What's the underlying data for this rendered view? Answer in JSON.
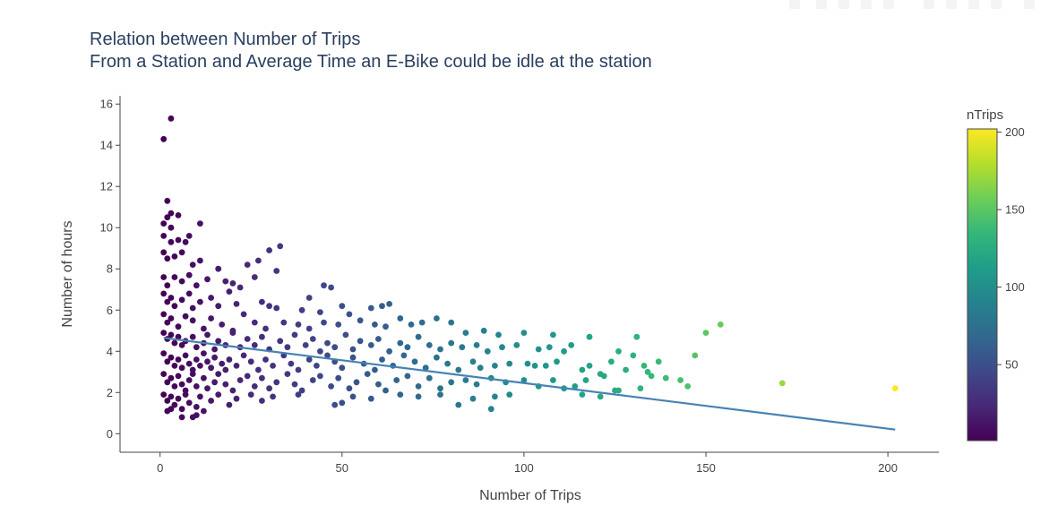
{
  "chart_data": {
    "type": "scatter",
    "title": [
      "Relation between Number of Trips",
      "From a Station and Average Time an E-Bike could be idle at the station"
    ],
    "xlabel": "Number of Trips",
    "ylabel": "Number of hours",
    "xlim": [
      -11,
      214
    ],
    "ylim": [
      -0.9,
      16.4
    ],
    "xticks": [
      0,
      50,
      100,
      150,
      200
    ],
    "yticks": [
      0,
      2,
      4,
      6,
      8,
      10,
      12,
      14,
      16
    ],
    "grid": false,
    "trendline": {
      "x": [
        1,
        202
      ],
      "y": [
        4.65,
        0.2
      ]
    },
    "colorbar": {
      "title": "nTrips",
      "range": [
        1,
        202
      ],
      "ticks": [
        50,
        100,
        150,
        200
      ],
      "colorscale": [
        "#440154",
        "#482878",
        "#3e4989",
        "#31688e",
        "#26828e",
        "#1f9e89",
        "#35b779",
        "#6ece58",
        "#b5de2b",
        "#fde725"
      ]
    },
    "points": [
      [
        3,
        15.3
      ],
      [
        1,
        14.3
      ],
      [
        2,
        11.3
      ],
      [
        3,
        10.7
      ],
      [
        2,
        10.5
      ],
      [
        1,
        10.2
      ],
      [
        3,
        10.0
      ],
      [
        5,
        10.6
      ],
      [
        11,
        10.2
      ],
      [
        1,
        9.6
      ],
      [
        3,
        9.3
      ],
      [
        5,
        9.4
      ],
      [
        7,
        9.3
      ],
      [
        8,
        9.6
      ],
      [
        1,
        8.8
      ],
      [
        2,
        8.5
      ],
      [
        4,
        8.6
      ],
      [
        6,
        8.8
      ],
      [
        9,
        8.2
      ],
      [
        11,
        8.4
      ],
      [
        16,
        8.0
      ],
      [
        24,
        8.2
      ],
      [
        32,
        7.9
      ],
      [
        27,
        8.4
      ],
      [
        30,
        8.9
      ],
      [
        33,
        9.1
      ],
      [
        1,
        7.6
      ],
      [
        2,
        7.2
      ],
      [
        4,
        7.6
      ],
      [
        6,
        7.4
      ],
      [
        8,
        7.7
      ],
      [
        10,
        7.2
      ],
      [
        13,
        7.5
      ],
      [
        18,
        7.4
      ],
      [
        20,
        7.3
      ],
      [
        22,
        7.1
      ],
      [
        26,
        7.6
      ],
      [
        1,
        6.8
      ],
      [
        2,
        6.4
      ],
      [
        3,
        6.6
      ],
      [
        4,
        6.2
      ],
      [
        6,
        6.5
      ],
      [
        8,
        6.8
      ],
      [
        9,
        6.1
      ],
      [
        11,
        6.4
      ],
      [
        14,
        6.6
      ],
      [
        16,
        6.2
      ],
      [
        19,
        6.9
      ],
      [
        21,
        6.3
      ],
      [
        28,
        6.4
      ],
      [
        30,
        6.2
      ],
      [
        32,
        6.1
      ],
      [
        39,
        6.0
      ],
      [
        44,
        5.9
      ],
      [
        45,
        7.2
      ],
      [
        47,
        7.1
      ],
      [
        50,
        6.2
      ],
      [
        41,
        6.6
      ],
      [
        58,
        6.1
      ],
      [
        61,
        6.2
      ],
      [
        63,
        6.3
      ],
      [
        1,
        5.8
      ],
      [
        2,
        5.4
      ],
      [
        3,
        5.6
      ],
      [
        5,
        5.2
      ],
      [
        7,
        5.7
      ],
      [
        9,
        5.5
      ],
      [
        12,
        5.1
      ],
      [
        14,
        5.6
      ],
      [
        17,
        5.3
      ],
      [
        20,
        5.0
      ],
      [
        23,
        5.8
      ],
      [
        26,
        5.4
      ],
      [
        29,
        5.1
      ],
      [
        34,
        5.4
      ],
      [
        38,
        5.3
      ],
      [
        41,
        5.1
      ],
      [
        45,
        5.4
      ],
      [
        49,
        5.3
      ],
      [
        52,
        5.8
      ],
      [
        55,
        5.5
      ],
      [
        59,
        5.3
      ],
      [
        62,
        5.2
      ],
      [
        66,
        5.6
      ],
      [
        69,
        5.3
      ],
      [
        72,
        5.4
      ],
      [
        76,
        5.6
      ],
      [
        80,
        5.4
      ],
      [
        84,
        4.9
      ],
      [
        89,
        5.0
      ],
      [
        93,
        4.8
      ],
      [
        100,
        4.9
      ],
      [
        108,
        4.8
      ],
      [
        118,
        4.7
      ],
      [
        131,
        4.7
      ],
      [
        150,
        4.9
      ],
      [
        154,
        5.3
      ],
      [
        1,
        4.9
      ],
      [
        2,
        4.6
      ],
      [
        3,
        4.8
      ],
      [
        4,
        4.4
      ],
      [
        5,
        4.7
      ],
      [
        6,
        4.3
      ],
      [
        7,
        4.5
      ],
      [
        9,
        4.7
      ],
      [
        10,
        4.2
      ],
      [
        12,
        4.4
      ],
      [
        13,
        4.8
      ],
      [
        15,
        4.1
      ],
      [
        16,
        4.5
      ],
      [
        18,
        4.3
      ],
      [
        20,
        4.9
      ],
      [
        22,
        4.2
      ],
      [
        24,
        4.6
      ],
      [
        26,
        4.3
      ],
      [
        28,
        4.7
      ],
      [
        30,
        4.1
      ],
      [
        33,
        4.5
      ],
      [
        35,
        4.2
      ],
      [
        37,
        4.8
      ],
      [
        40,
        4.3
      ],
      [
        42,
        4.6
      ],
      [
        44,
        4.0
      ],
      [
        46,
        4.4
      ],
      [
        48,
        4.2
      ],
      [
        51,
        4.8
      ],
      [
        53,
        4.1
      ],
      [
        55,
        4.5
      ],
      [
        58,
        4.3
      ],
      [
        60,
        4.6
      ],
      [
        63,
        4.0
      ],
      [
        66,
        4.4
      ],
      [
        68,
        4.2
      ],
      [
        71,
        4.7
      ],
      [
        74,
        4.3
      ],
      [
        77,
        4.1
      ],
      [
        80,
        4.4
      ],
      [
        83,
        4.2
      ],
      [
        87,
        4.3
      ],
      [
        90,
        4.0
      ],
      [
        94,
        4.2
      ],
      [
        98,
        4.3
      ],
      [
        104,
        4.1
      ],
      [
        107,
        4.2
      ],
      [
        111,
        4.0
      ],
      [
        113,
        4.3
      ],
      [
        126,
        4.0
      ],
      [
        130,
        3.8
      ],
      [
        137,
        3.5
      ],
      [
        147,
        3.8
      ],
      [
        1,
        3.9
      ],
      [
        2,
        3.5
      ],
      [
        3,
        3.7
      ],
      [
        4,
        3.3
      ],
      [
        5,
        3.6
      ],
      [
        6,
        3.2
      ],
      [
        7,
        3.8
      ],
      [
        8,
        3.4
      ],
      [
        9,
        3.1
      ],
      [
        10,
        3.6
      ],
      [
        11,
        3.3
      ],
      [
        12,
        3.9
      ],
      [
        13,
        3.5
      ],
      [
        14,
        3.2
      ],
      [
        15,
        3.7
      ],
      [
        17,
        3.4
      ],
      [
        18,
        3.1
      ],
      [
        19,
        3.6
      ],
      [
        21,
        3.3
      ],
      [
        23,
        3.8
      ],
      [
        25,
        3.5
      ],
      [
        27,
        3.1
      ],
      [
        29,
        3.6
      ],
      [
        31,
        3.3
      ],
      [
        34,
        3.8
      ],
      [
        36,
        3.4
      ],
      [
        38,
        3.1
      ],
      [
        41,
        3.6
      ],
      [
        43,
        3.3
      ],
      [
        46,
        3.8
      ],
      [
        48,
        3.5
      ],
      [
        50,
        3.2
      ],
      [
        53,
        3.7
      ],
      [
        56,
        3.4
      ],
      [
        59,
        3.1
      ],
      [
        61,
        3.6
      ],
      [
        64,
        3.3
      ],
      [
        67,
        3.8
      ],
      [
        70,
        3.5
      ],
      [
        73,
        3.2
      ],
      [
        76,
        3.7
      ],
      [
        79,
        3.4
      ],
      [
        82,
        3.1
      ],
      [
        86,
        3.5
      ],
      [
        88,
        3.2
      ],
      [
        92,
        3.3
      ],
      [
        96,
        3.4
      ],
      [
        101,
        3.4
      ],
      [
        103,
        3.3
      ],
      [
        106,
        3.3
      ],
      [
        109,
        3.5
      ],
      [
        116,
        3.1
      ],
      [
        118,
        3.3
      ],
      [
        121,
        2.9
      ],
      [
        124,
        3.5
      ],
      [
        128,
        3.1
      ],
      [
        133,
        3.3
      ],
      [
        134,
        3.0
      ],
      [
        135,
        2.8
      ],
      [
        1,
        2.9
      ],
      [
        2,
        2.5
      ],
      [
        3,
        2.7
      ],
      [
        4,
        2.3
      ],
      [
        5,
        2.8
      ],
      [
        6,
        2.4
      ],
      [
        7,
        2.1
      ],
      [
        8,
        2.6
      ],
      [
        9,
        2.9
      ],
      [
        10,
        2.3
      ],
      [
        12,
        2.7
      ],
      [
        13,
        2.2
      ],
      [
        15,
        2.5
      ],
      [
        16,
        2.9
      ],
      [
        18,
        2.4
      ],
      [
        20,
        2.1
      ],
      [
        22,
        2.6
      ],
      [
        24,
        2.8
      ],
      [
        26,
        2.3
      ],
      [
        28,
        2.7
      ],
      [
        30,
        2.2
      ],
      [
        32,
        2.5
      ],
      [
        35,
        2.9
      ],
      [
        37,
        2.4
      ],
      [
        39,
        2.1
      ],
      [
        42,
        2.6
      ],
      [
        44,
        2.8
      ],
      [
        47,
        2.3
      ],
      [
        49,
        2.7
      ],
      [
        52,
        2.2
      ],
      [
        54,
        2.5
      ],
      [
        57,
        2.9
      ],
      [
        60,
        2.4
      ],
      [
        62,
        2.1
      ],
      [
        65,
        2.6
      ],
      [
        68,
        2.8
      ],
      [
        71,
        2.3
      ],
      [
        74,
        2.7
      ],
      [
        77,
        2.2
      ],
      [
        80,
        2.5
      ],
      [
        84,
        2.6
      ],
      [
        87,
        2.4
      ],
      [
        91,
        2.7
      ],
      [
        95,
        2.5
      ],
      [
        100,
        2.6
      ],
      [
        104,
        2.3
      ],
      [
        108,
        2.6
      ],
      [
        114,
        2.3
      ],
      [
        117,
        2.6
      ],
      [
        122,
        2.8
      ],
      [
        125,
        2.1
      ],
      [
        139,
        2.7
      ],
      [
        143,
        2.6
      ],
      [
        145,
        2.3
      ],
      [
        171,
        2.45
      ],
      [
        202,
        2.2
      ],
      [
        1,
        1.9
      ],
      [
        2,
        1.6
      ],
      [
        3,
        1.8
      ],
      [
        4,
        1.4
      ],
      [
        5,
        1.7
      ],
      [
        6,
        1.2
      ],
      [
        7,
        1.9
      ],
      [
        8,
        1.5
      ],
      [
        10,
        1.3
      ],
      [
        11,
        1.8
      ],
      [
        14,
        1.6
      ],
      [
        16,
        1.9
      ],
      [
        19,
        1.4
      ],
      [
        21,
        1.7
      ],
      [
        25,
        1.9
      ],
      [
        28,
        1.6
      ],
      [
        31,
        1.8
      ],
      [
        38,
        1.9
      ],
      [
        48,
        1.4
      ],
      [
        50,
        1.5
      ],
      [
        53,
        1.8
      ],
      [
        58,
        1.7
      ],
      [
        66,
        1.9
      ],
      [
        71,
        1.8
      ],
      [
        77,
        1.9
      ],
      [
        82,
        1.4
      ],
      [
        86,
        1.7
      ],
      [
        91,
        1.2
      ],
      [
        92,
        1.8
      ],
      [
        96,
        1.9
      ],
      [
        111,
        2.2
      ],
      [
        116,
        1.9
      ],
      [
        121,
        1.8
      ],
      [
        126,
        2.1
      ],
      [
        132,
        2.2
      ],
      [
        2,
        1.1
      ],
      [
        3,
        1.2
      ],
      [
        6,
        0.8
      ],
      [
        9,
        0.8
      ],
      [
        10,
        0.9
      ],
      [
        12,
        1.1
      ]
    ]
  }
}
